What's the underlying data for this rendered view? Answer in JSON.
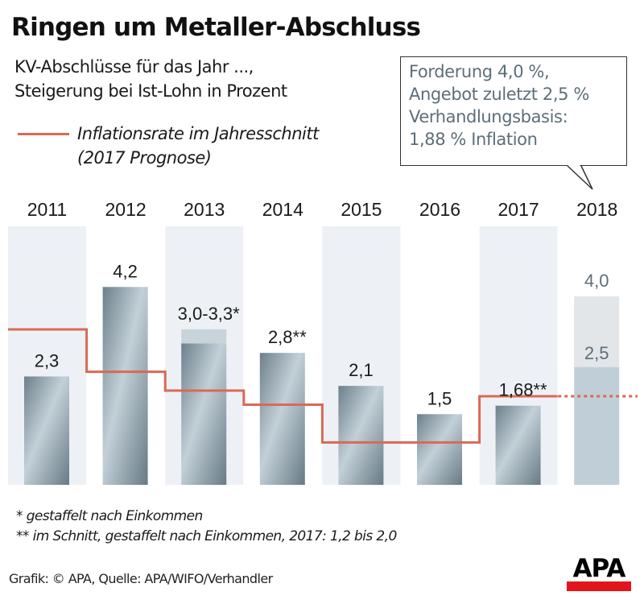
{
  "header": {
    "title": "Ringen um Metaller-Abschluss",
    "subtitle_line1": "KV-Abschlüsse für das Jahr ...,",
    "subtitle_line2": "Steigerung bei Ist-Lohn in Prozent",
    "legend_line1": "Inflationsrate im Jahresschnitt",
    "legend_line2": "(2017 Prognose)"
  },
  "callout": {
    "line1": "Forderung 4,0 %,",
    "line2": "Angebot zuletzt 2,5 %",
    "line3": "Verhandlungsbasis:",
    "line4": "1,88 % Inflation"
  },
  "colors": {
    "inflation_line": "#d86a55",
    "column_band": "#edf1f5",
    "bar_dark": "#667a85",
    "bar_light": "#c3d0d8",
    "bar_2018_offer": "#c0ced7",
    "bar_2018_demand": "#e2e6e9",
    "label_2018": "#5d6e78",
    "logo_red": "#e3141b"
  },
  "chart_data": {
    "type": "bar",
    "title": "Ringen um Metaller-Abschluss",
    "ylabel": "Steigerung bei Ist-Lohn in Prozent",
    "ylim": [
      0,
      4.8
    ],
    "grid": false,
    "categories": [
      "2011",
      "2012",
      "2013",
      "2014",
      "2015",
      "2016",
      "2017",
      "2018"
    ],
    "series": [
      {
        "name": "KV-Abschluss",
        "values": [
          2.3,
          4.2,
          3.0,
          2.8,
          2.1,
          1.5,
          1.68,
          null
        ],
        "range_max": [
          null,
          null,
          3.3,
          null,
          null,
          null,
          null,
          null
        ],
        "labels": [
          "2,3",
          "4,2",
          "3,0-3,3*",
          "2,8**",
          "2,1",
          "1,5",
          "1,68**",
          ""
        ]
      },
      {
        "name": "Angebot zuletzt (2018)",
        "values": [
          null,
          null,
          null,
          null,
          null,
          null,
          null,
          2.5
        ],
        "labels": [
          "",
          "",
          "",
          "",
          "",
          "",
          "",
          "2,5"
        ]
      },
      {
        "name": "Forderung (2018)",
        "values": [
          null,
          null,
          null,
          null,
          null,
          null,
          null,
          4.0
        ],
        "labels": [
          "",
          "",
          "",
          "",
          "",
          "",
          "",
          "4,0"
        ]
      },
      {
        "name": "Inflationsrate im Jahresschnitt",
        "type": "step",
        "values": [
          3.3,
          2.4,
          2.0,
          1.7,
          0.9,
          0.9,
          1.88,
          1.88
        ],
        "dashed_from_index": 7
      }
    ],
    "legend": "top-left"
  },
  "footnotes": {
    "note1": "*  gestaffelt nach Einkommen",
    "note2": "**  im Schnitt, gestaffelt nach Einkommen, 2017: 1,2 bis 2,0"
  },
  "source": "Grafik: © APA, Quelle: APA/WIFO/Verhandler",
  "logo": "APA"
}
